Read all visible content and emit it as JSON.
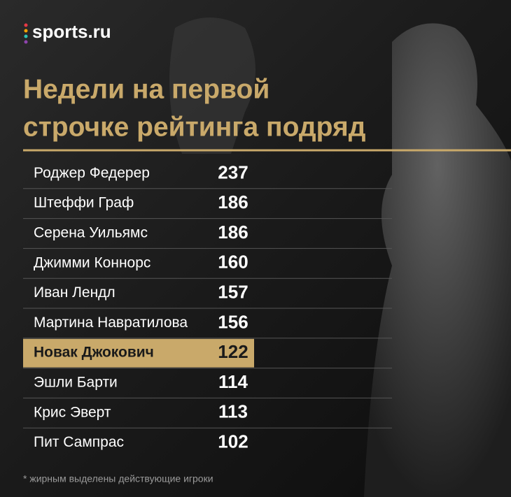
{
  "logo": "sports.ru",
  "title": [
    "Недели на первой",
    "строчке рейтинга подряд"
  ],
  "table": {
    "highlight": 6,
    "rows": [
      [
        "Роджер Федерер",
        237
      ],
      [
        "Штеффи Граф",
        186
      ],
      [
        "Серена Уильямс",
        186
      ],
      [
        "Джимми Коннорс",
        160
      ],
      [
        "Иван Лендл",
        157
      ],
      [
        "Мартина Навратилова",
        156
      ],
      [
        "Новак Джокович",
        122
      ],
      [
        "Эшли Барти",
        114
      ],
      [
        "Крис Эверт",
        113
      ],
      [
        "Пит Сампрас",
        102
      ]
    ]
  },
  "footnote": "* жирным выделены действующие игроки"
}
